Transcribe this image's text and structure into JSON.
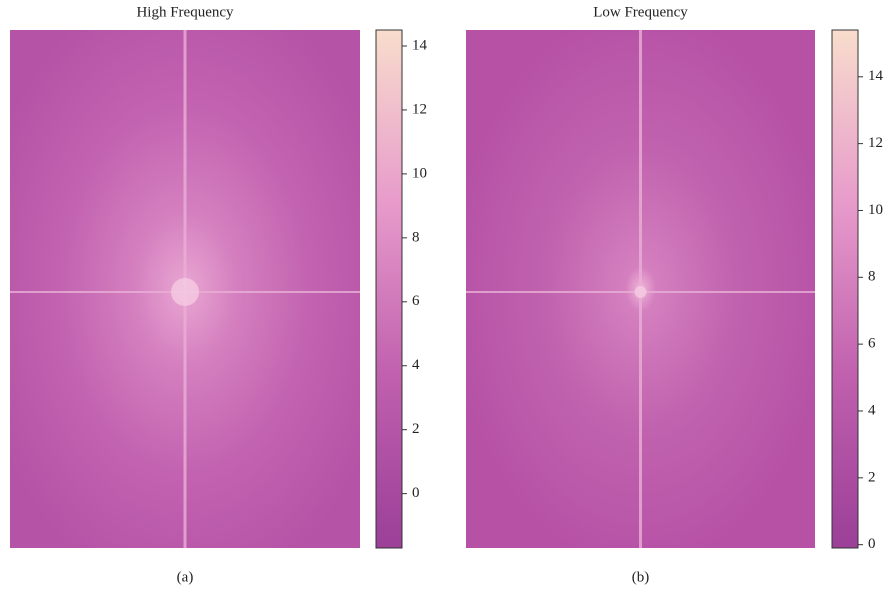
{
  "chart_data": [
    {
      "type": "heatmap",
      "title": "High Frequency",
      "caption": "(a)",
      "colormap": [
        "#9b3f98",
        "#c060ae",
        "#e79bcb",
        "#f8ddcc"
      ],
      "clim": [
        -1.7,
        14.5
      ],
      "cticks": [
        0,
        2,
        4,
        6,
        8,
        10,
        12,
        14
      ]
    },
    {
      "type": "heatmap",
      "title": "Low Frequency",
      "caption": "(b)",
      "colormap": [
        "#9b3f98",
        "#c060ae",
        "#e79bcb",
        "#f8ddcc"
      ],
      "clim": [
        -0.1,
        15.4
      ],
      "cticks": [
        0,
        2,
        4,
        6,
        8,
        10,
        12,
        14
      ]
    }
  ]
}
